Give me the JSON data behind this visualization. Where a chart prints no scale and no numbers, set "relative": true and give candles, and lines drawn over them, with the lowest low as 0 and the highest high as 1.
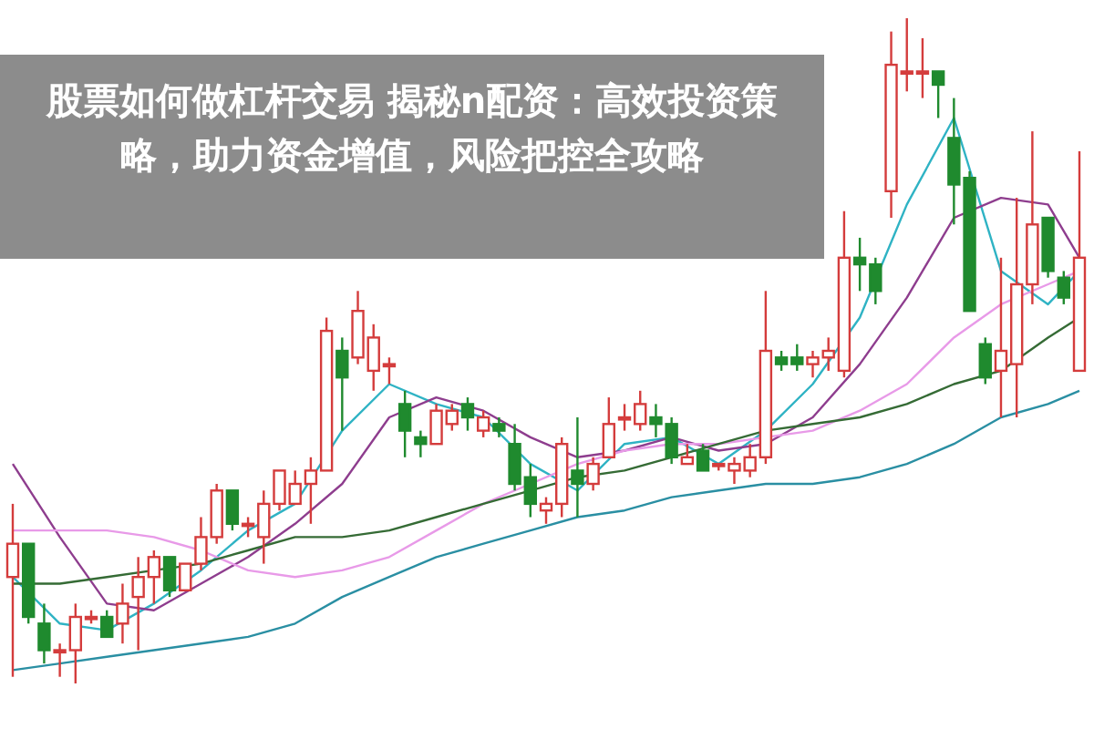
{
  "chart_data": {
    "type": "candlestick",
    "title": "股票如何做杠杆交易 揭秘n配资：高效投资策略，助力资金增值，风险把控全攻略",
    "relative": true,
    "colors": [
      "#d43c3c",
      "#1f8a2e",
      "#1f8a2e",
      "#d43c3c",
      "#d43c3c",
      "#d43c3c",
      "#1f8a2e",
      "#d43c3c",
      "#d43c3c",
      "#d43c3c",
      "#1f8a2e",
      "#d43c3c",
      "#d43c3c",
      "#d43c3c",
      "#1f8a2e",
      "#d43c3c",
      "#d43c3c",
      "#d43c3c",
      "#d43c3c",
      "#d43c3c",
      "#d43c3c",
      "#1f8a2e",
      "#d43c3c",
      "#d43c3c",
      "#d43c3c",
      "#1f8a2e",
      "#1f8a2e",
      "#d43c3c",
      "#d43c3c",
      "#1f8a2e",
      "#d43c3c",
      "#1f8a2e",
      "#1f8a2e",
      "#1f8a2e",
      "#d43c3c",
      "#d43c3c",
      "#1f8a2e",
      "#d43c3c",
      "#d43c3c",
      "#d43c3c",
      "#d43c3c",
      "#1f8a2e",
      "#1f8a2e",
      "#d43c3c",
      "#1f8a2e",
      "#d43c3c",
      "#d43c3c",
      "#d43c3c",
      "#d43c3c",
      "#1f8a2e",
      "#1f8a2e",
      "#d43c3c",
      "#d43c3c",
      "#d43c3c",
      "#1f8a2e",
      "#1f8a2e",
      "#d43c3c",
      "#d43c3c",
      "#d43c3c",
      "#1f8a2e",
      "#1f8a2e",
      "#1f8a2e",
      "#1f8a2e",
      "#d43c3c",
      "#d43c3c",
      "#d43c3c",
      "#1f8a2e",
      "#1f8a2e",
      "#d43c3c"
    ],
    "categories": [
      null,
      null,
      null,
      null,
      null,
      null,
      null,
      null,
      null,
      null,
      null,
      null,
      null,
      null,
      null,
      null,
      null,
      null,
      null,
      null,
      null,
      null,
      null,
      null,
      null,
      null,
      null,
      null,
      null,
      null,
      null,
      null,
      null,
      null,
      null,
      null,
      null,
      null,
      null,
      null,
      null,
      null,
      null,
      null,
      null,
      null,
      null,
      null,
      null,
      null,
      null,
      null,
      null,
      null,
      null,
      null,
      null,
      null,
      null,
      null,
      null,
      null,
      null,
      null,
      null,
      null,
      null,
      null,
      null
    ],
    "ohlc": [
      [
        0.16,
        0.27,
        0.01,
        0.21
      ],
      [
        0.21,
        0.21,
        0.09,
        0.1
      ],
      [
        0.09,
        0.12,
        0.03,
        0.05
      ],
      [
        0.05,
        0.06,
        0.01,
        0.05
      ],
      [
        0.05,
        0.12,
        0.0,
        0.1
      ],
      [
        0.1,
        0.11,
        0.09,
        0.1
      ],
      [
        0.1,
        0.11,
        0.07,
        0.07
      ],
      [
        0.09,
        0.15,
        0.06,
        0.12
      ],
      [
        0.13,
        0.19,
        0.05,
        0.16
      ],
      [
        0.16,
        0.2,
        0.12,
        0.19
      ],
      [
        0.19,
        0.19,
        0.13,
        0.14
      ],
      [
        0.14,
        0.18,
        0.14,
        0.18
      ],
      [
        0.18,
        0.25,
        0.17,
        0.22
      ],
      [
        0.22,
        0.3,
        0.21,
        0.29
      ],
      [
        0.29,
        0.29,
        0.23,
        0.24
      ],
      [
        0.24,
        0.25,
        0.22,
        0.24
      ],
      [
        0.22,
        0.29,
        0.18,
        0.27
      ],
      [
        0.27,
        0.32,
        0.26,
        0.32
      ],
      [
        0.27,
        0.32,
        0.27,
        0.3
      ],
      [
        0.3,
        0.34,
        0.24,
        0.32
      ],
      [
        0.32,
        0.55,
        0.32,
        0.53
      ],
      [
        0.5,
        0.52,
        0.38,
        0.46
      ],
      [
        0.49,
        0.59,
        0.48,
        0.56
      ],
      [
        0.47,
        0.54,
        0.44,
        0.52
      ],
      [
        0.48,
        0.49,
        0.45,
        0.48
      ],
      [
        0.42,
        0.44,
        0.34,
        0.38
      ],
      [
        0.37,
        0.38,
        0.34,
        0.36
      ],
      [
        0.36,
        0.42,
        0.36,
        0.41
      ],
      [
        0.39,
        0.42,
        0.38,
        0.41
      ],
      [
        0.42,
        0.43,
        0.38,
        0.4
      ],
      [
        0.38,
        0.41,
        0.37,
        0.4
      ],
      [
        0.39,
        0.4,
        0.37,
        0.38
      ],
      [
        0.36,
        0.39,
        0.29,
        0.3
      ],
      [
        0.31,
        0.33,
        0.25,
        0.27
      ],
      [
        0.26,
        0.28,
        0.24,
        0.27
      ],
      [
        0.27,
        0.37,
        0.25,
        0.36
      ],
      [
        0.32,
        0.4,
        0.25,
        0.3
      ],
      [
        0.3,
        0.34,
        0.29,
        0.33
      ],
      [
        0.34,
        0.43,
        0.34,
        0.39
      ],
      [
        0.4,
        0.42,
        0.38,
        0.4
      ],
      [
        0.39,
        0.44,
        0.38,
        0.42
      ],
      [
        0.4,
        0.42,
        0.37,
        0.39
      ],
      [
        0.39,
        0.4,
        0.33,
        0.34
      ],
      [
        0.33,
        0.36,
        0.33,
        0.34
      ],
      [
        0.35,
        0.36,
        0.32,
        0.32
      ],
      [
        0.33,
        0.33,
        0.32,
        0.33
      ],
      [
        0.32,
        0.34,
        0.3,
        0.33
      ],
      [
        0.32,
        0.36,
        0.31,
        0.34
      ],
      [
        0.34,
        0.59,
        0.33,
        0.5
      ],
      [
        0.49,
        0.5,
        0.47,
        0.48
      ],
      [
        0.49,
        0.51,
        0.47,
        0.48
      ],
      [
        0.48,
        0.5,
        0.46,
        0.49
      ],
      [
        0.49,
        0.52,
        0.47,
        0.5
      ],
      [
        0.47,
        0.71,
        0.46,
        0.64
      ],
      [
        0.64,
        0.67,
        0.59,
        0.63
      ],
      [
        0.63,
        0.64,
        0.57,
        0.59
      ],
      [
        0.74,
        0.98,
        0.7,
        0.93
      ],
      [
        0.92,
        1.0,
        0.89,
        0.92
      ],
      [
        0.92,
        0.97,
        0.88,
        0.92
      ],
      [
        0.92,
        0.92,
        0.85,
        0.9
      ],
      [
        0.82,
        0.88,
        0.69,
        0.75
      ],
      [
        0.76,
        0.77,
        0.56,
        0.56
      ],
      [
        0.51,
        0.52,
        0.45,
        0.46
      ],
      [
        0.47,
        0.64,
        0.4,
        0.5
      ],
      [
        0.48,
        0.73,
        0.4,
        0.6
      ],
      [
        0.6,
        0.83,
        0.57,
        0.69
      ],
      [
        0.7,
        0.7,
        0.61,
        0.62
      ],
      [
        0.61,
        0.62,
        0.57,
        0.58
      ],
      [
        0.47,
        0.8,
        0.47,
        0.64
      ]
    ],
    "series": [
      {
        "type": "line",
        "color": "#2fb3c4",
        "values": [
          0.16,
          null,
          null,
          0.09,
          null,
          null,
          0.08,
          null,
          null,
          0.12,
          null,
          null,
          0.17,
          null,
          null,
          0.23,
          null,
          null,
          0.27,
          null,
          null,
          0.38,
          null,
          null,
          0.45,
          null,
          null,
          0.42,
          null,
          null,
          0.4,
          null,
          null,
          0.33,
          null,
          null,
          0.29,
          null,
          null,
          0.36,
          null,
          null,
          0.37,
          null,
          null,
          0.33,
          null,
          null,
          0.38,
          null,
          null,
          0.45,
          null,
          null,
          0.55,
          null,
          null,
          0.72,
          null,
          null,
          0.85,
          null,
          null,
          0.62,
          null,
          null,
          0.57,
          null,
          0.62
        ]
      },
      {
        "type": "line",
        "color": "#8e3d8e",
        "values": [
          0.33,
          null,
          null,
          0.22,
          null,
          null,
          0.12,
          null,
          null,
          0.11,
          null,
          null,
          0.15,
          null,
          null,
          0.19,
          null,
          null,
          0.24,
          null,
          null,
          0.3,
          null,
          null,
          0.4,
          null,
          null,
          0.43,
          null,
          null,
          0.41,
          null,
          null,
          0.37,
          null,
          null,
          0.34,
          null,
          null,
          0.35,
          null,
          null,
          0.37,
          null,
          null,
          0.35,
          null,
          null,
          0.36,
          null,
          null,
          0.4,
          null,
          null,
          0.48,
          null,
          null,
          0.58,
          null,
          null,
          0.7,
          null,
          null,
          0.73,
          null,
          null,
          0.72,
          null,
          0.64
        ]
      },
      {
        "type": "line",
        "color": "#e89ae8",
        "values": [
          0.23,
          null,
          null,
          0.23,
          null,
          null,
          0.23,
          null,
          null,
          0.22,
          null,
          null,
          0.2,
          null,
          null,
          0.17,
          null,
          null,
          0.16,
          null,
          null,
          0.17,
          null,
          null,
          0.19,
          null,
          null,
          0.23,
          null,
          null,
          0.27,
          null,
          null,
          0.3,
          null,
          null,
          0.33,
          null,
          null,
          0.35,
          null,
          null,
          0.36,
          null,
          null,
          0.36,
          null,
          null,
          0.37,
          null,
          null,
          0.38,
          null,
          null,
          0.41,
          null,
          null,
          0.45,
          null,
          null,
          0.52,
          null,
          null,
          0.57,
          null,
          null,
          0.6,
          null,
          0.62
        ]
      },
      {
        "type": "line",
        "color": "#356b35",
        "values": [
          0.15,
          null,
          null,
          0.15,
          null,
          null,
          0.16,
          null,
          null,
          0.17,
          null,
          null,
          0.18,
          null,
          null,
          0.2,
          null,
          null,
          0.22,
          null,
          null,
          0.22,
          null,
          null,
          0.23,
          null,
          null,
          0.25,
          null,
          null,
          0.27,
          null,
          null,
          0.29,
          null,
          null,
          0.31,
          null,
          null,
          0.32,
          null,
          null,
          0.34,
          null,
          null,
          0.36,
          null,
          null,
          0.38,
          null,
          null,
          0.39,
          null,
          null,
          0.4,
          null,
          null,
          0.42,
          null,
          null,
          0.45,
          null,
          null,
          0.47,
          null,
          null,
          0.52,
          null,
          0.55
        ]
      },
      {
        "type": "line",
        "color": "#2a8fa3",
        "values": [
          0.02,
          null,
          null,
          0.03,
          null,
          null,
          0.04,
          null,
          null,
          0.05,
          null,
          null,
          0.06,
          null,
          null,
          0.07,
          null,
          null,
          0.09,
          null,
          null,
          0.13,
          null,
          null,
          0.16,
          null,
          null,
          0.19,
          null,
          null,
          0.21,
          null,
          null,
          0.23,
          null,
          null,
          0.25,
          null,
          null,
          0.26,
          null,
          null,
          0.28,
          null,
          null,
          0.29,
          null,
          null,
          0.3,
          null,
          null,
          0.3,
          null,
          null,
          0.31,
          null,
          null,
          0.33,
          null,
          null,
          0.36,
          null,
          null,
          0.4,
          null,
          null,
          0.42,
          null,
          0.44
        ]
      }
    ]
  }
}
